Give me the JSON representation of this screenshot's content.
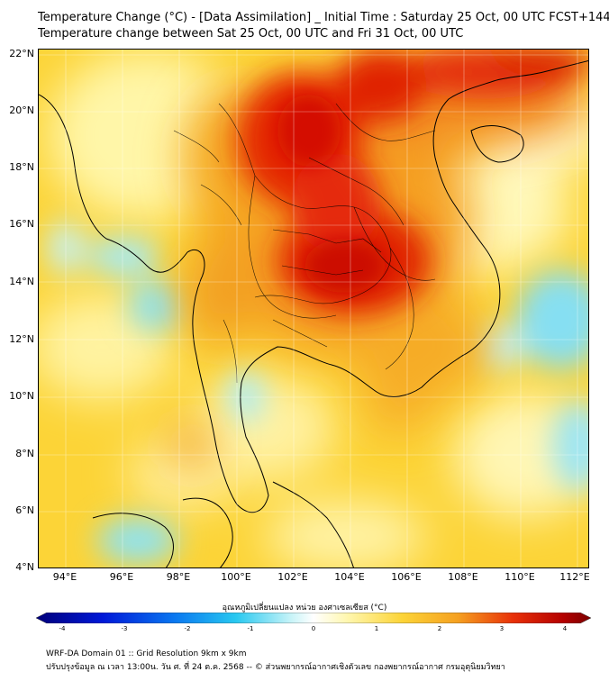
{
  "header": {
    "title_line1": "Temperature Change (°C) - [Data Assimilation] _ Initial Time : Saturday 25 Oct, 00 UTC FCST+144",
    "title_line2": "Temperature change between Sat 25 Oct, 00 UTC and Fri 31 Oct, 00 UTC"
  },
  "map": {
    "lat_labels": [
      "22°N",
      "20°N",
      "18°N",
      "16°N",
      "14°N",
      "12°N",
      "10°N",
      "8°N",
      "6°N",
      "4°N"
    ],
    "lon_labels": [
      "94°E",
      "96°E",
      "98°E",
      "100°E",
      "102°E",
      "104°E",
      "106°E",
      "108°E",
      "110°E",
      "112°E"
    ],
    "colors": {
      "hot_core": "#d40000",
      "warm": "#f08a1a",
      "mild": "#fde24a",
      "pale": "#fff8b8",
      "cool": "#7ee0f2",
      "background": "#fcd437"
    }
  },
  "colorbar": {
    "title": "อุณหภูมิเปลี่ยนแปลง หน่วย องศาเซลเซียส (°C)",
    "ticks": [
      "-4",
      "-3",
      "-2",
      "-1",
      "0",
      "1",
      "2",
      "3",
      "4"
    ],
    "min_color": "#00007a",
    "max_color": "#7a0000"
  },
  "footer": {
    "line1": "WRF-DA Domain 01 :: Grid Resolution 9km x 9km",
    "line2": "ปรับปรุงข้อมูล ณ เวลา 13:00น. วัน ศ. ที่ 24 ต.ค. 2568 -- © ส่วนพยากรณ์อากาศเชิงตัวเลข กองพยากรณ์อากาศ กรมอุตุนิยมวิทยา"
  }
}
